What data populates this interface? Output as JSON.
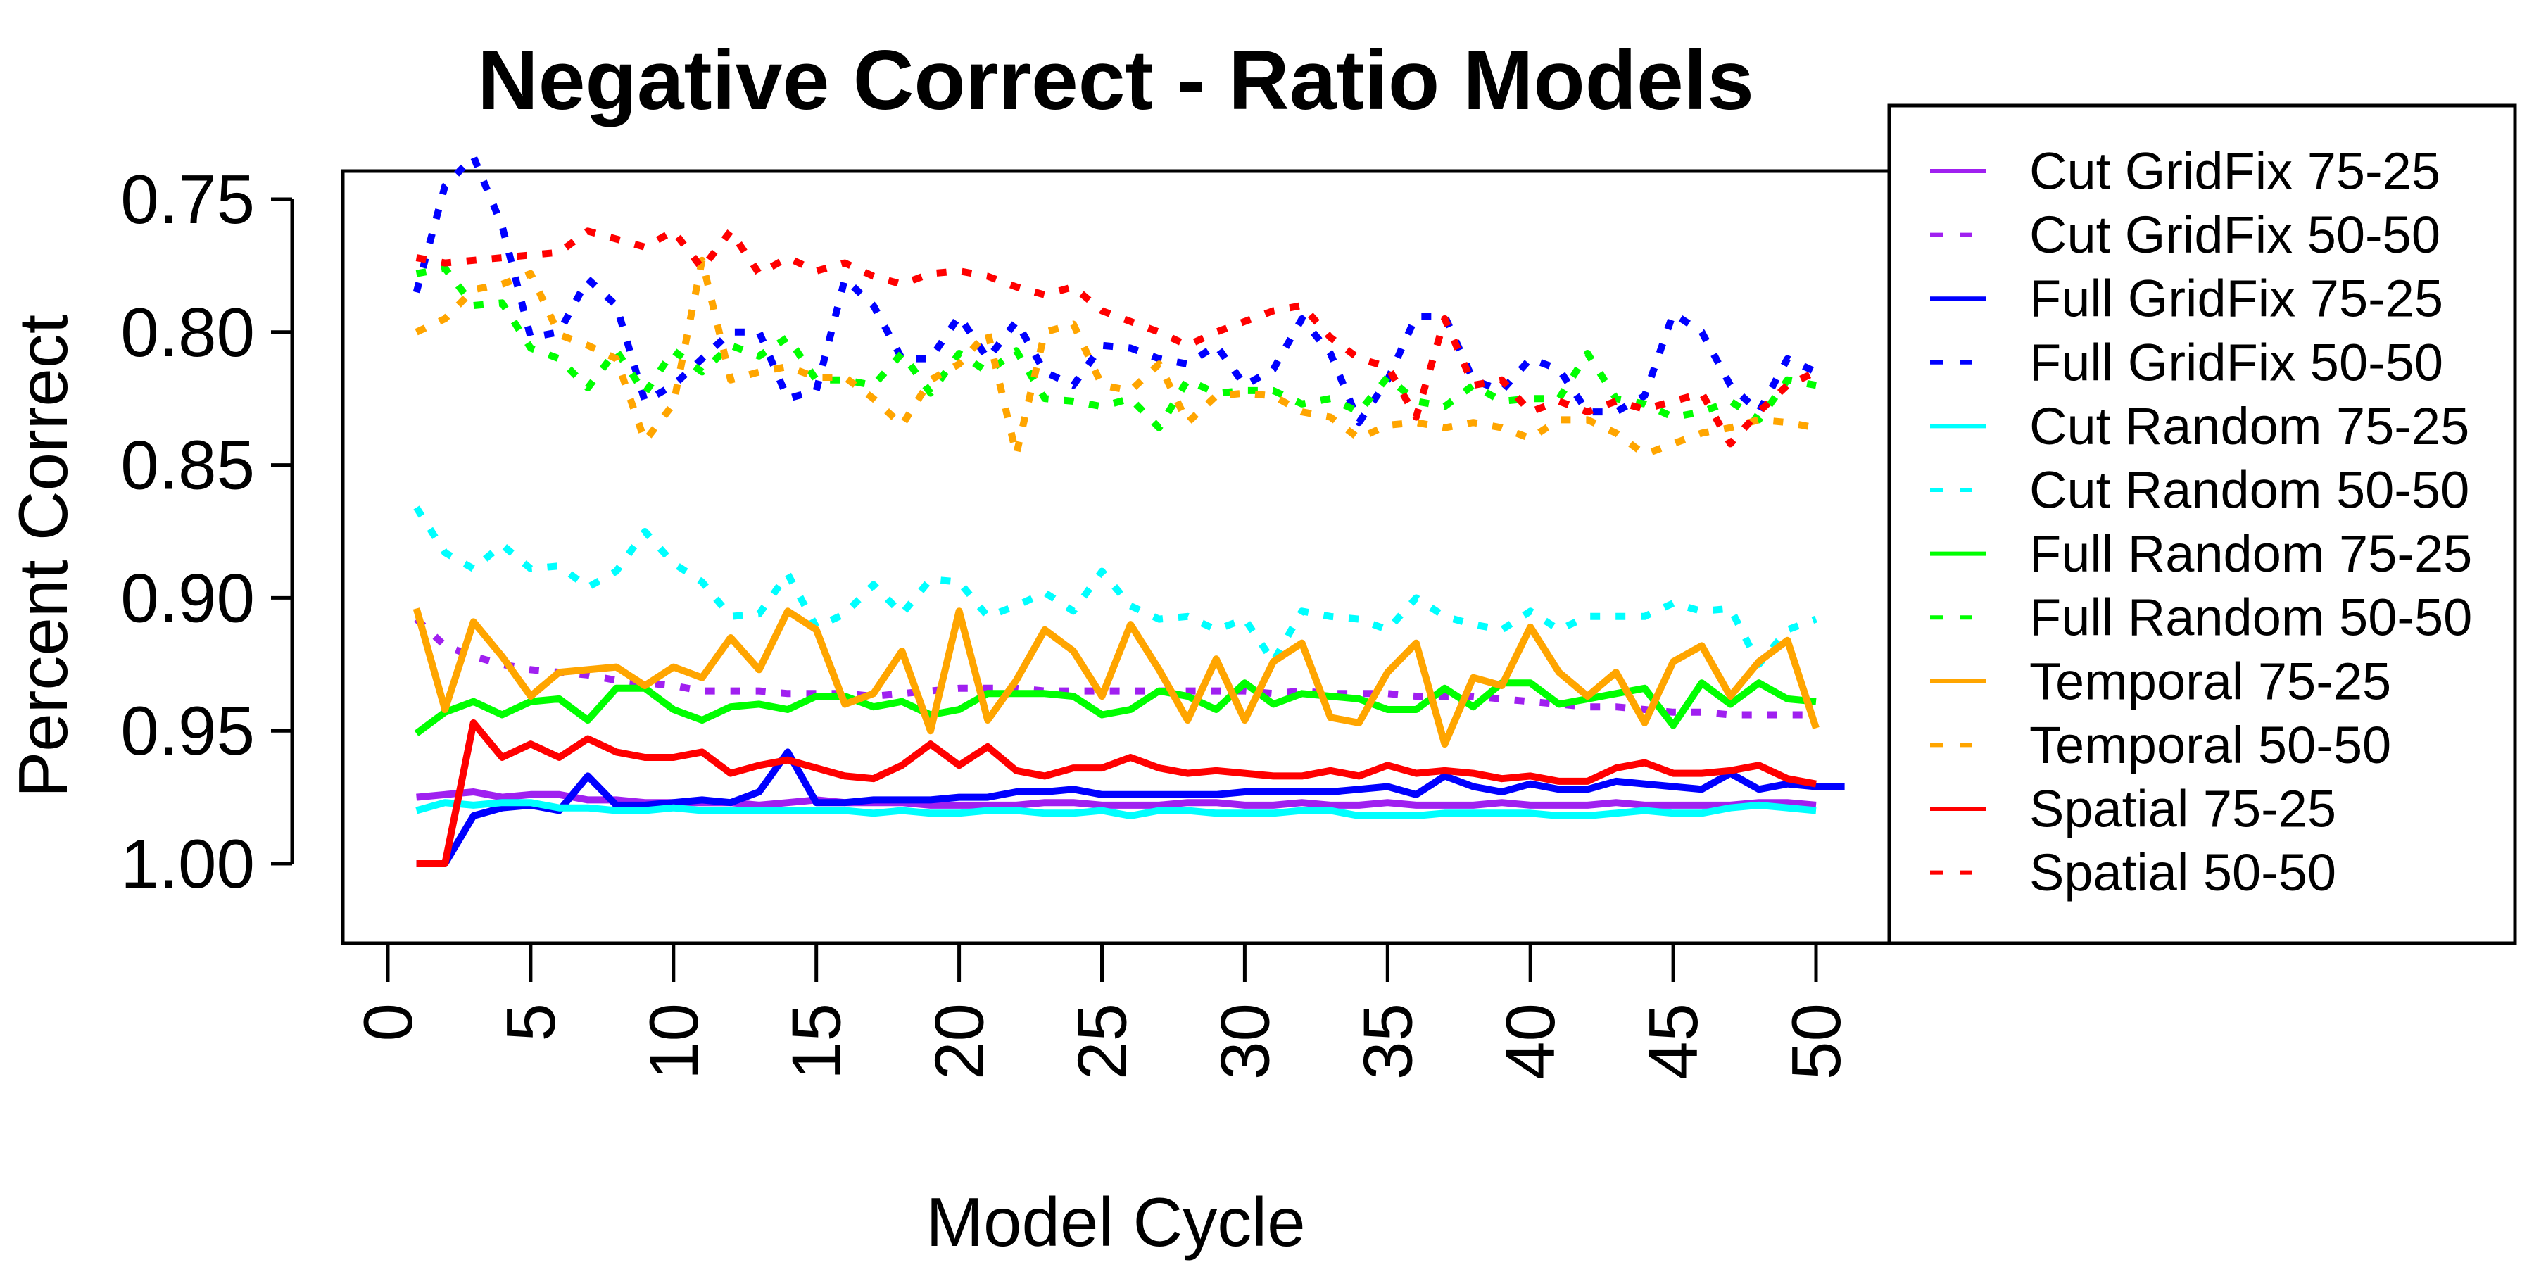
{
  "chart_data": {
    "type": "line",
    "title": "Negative Correct - Ratio Models",
    "xlabel": "Model Cycle",
    "ylabel": "Percent Correct",
    "xlim": [
      0,
      50
    ],
    "ylim": [
      0.73,
      1.01
    ],
    "xticks": [
      "0",
      "5",
      "10",
      "15",
      "20",
      "25",
      "30",
      "35",
      "40",
      "45",
      "50"
    ],
    "xtick_values": [
      0,
      5,
      10,
      15,
      20,
      25,
      30,
      35,
      40,
      45,
      50
    ],
    "yticks": [
      "1.00",
      "0.95",
      "0.90",
      "0.85",
      "0.80",
      "0.75"
    ],
    "ytick_values": [
      1.0,
      0.95,
      0.9,
      0.85,
      0.8,
      0.75
    ],
    "grid": false,
    "legend_position": "right",
    "series": [
      {
        "name": "Cut GridFix 75-25",
        "color": "#A020F0",
        "dash": "solid",
        "x_start": 1,
        "values": [
          0.975,
          0.974,
          0.973,
          0.975,
          0.974,
          0.974,
          0.976,
          0.976,
          0.977,
          0.977,
          0.977,
          0.977,
          0.978,
          0.977,
          0.976,
          0.977,
          0.977,
          0.977,
          0.978,
          0.978,
          0.978,
          0.978,
          0.977,
          0.977,
          0.978,
          0.978,
          0.978,
          0.977,
          0.977,
          0.978,
          0.978,
          0.977,
          0.978,
          0.978,
          0.977,
          0.978,
          0.978,
          0.978,
          0.977,
          0.978,
          0.978,
          0.978,
          0.977,
          0.978,
          0.978,
          0.978,
          0.978,
          0.977,
          0.977,
          0.978
        ]
      },
      {
        "name": "Cut GridFix 50-50",
        "color": "#A020F0",
        "dash": "dashed",
        "x_start": 1,
        "values": [
          0.908,
          0.918,
          0.922,
          0.925,
          0.927,
          0.928,
          0.929,
          0.931,
          0.932,
          0.933,
          0.935,
          0.935,
          0.935,
          0.936,
          0.936,
          0.936,
          0.937,
          0.936,
          0.935,
          0.934,
          0.934,
          0.934,
          0.935,
          0.935,
          0.935,
          0.935,
          0.935,
          0.935,
          0.935,
          0.935,
          0.936,
          0.935,
          0.936,
          0.936,
          0.936,
          0.937,
          0.937,
          0.937,
          0.938,
          0.939,
          0.94,
          0.941,
          0.941,
          0.942,
          0.943,
          0.943,
          0.944,
          0.944,
          0.944,
          0.944
        ]
      },
      {
        "name": "Full GridFix 75-25",
        "color": "#0000FF",
        "dash": "solid",
        "x_start": 1,
        "values": [
          1.0,
          1.0,
          0.982,
          0.979,
          0.978,
          0.98,
          0.967,
          0.978,
          0.978,
          0.977,
          0.976,
          0.977,
          0.973,
          0.958,
          0.977,
          0.977,
          0.976,
          0.976,
          0.976,
          0.975,
          0.975,
          0.973,
          0.973,
          0.972,
          0.974,
          0.974,
          0.974,
          0.974,
          0.974,
          0.973,
          0.973,
          0.973,
          0.973,
          0.972,
          0.971,
          0.974,
          0.967,
          0.971,
          0.973,
          0.97,
          0.972,
          0.972,
          0.969,
          0.97,
          0.971,
          0.972,
          0.966,
          0.972,
          0.97,
          0.971,
          0.971
        ]
      },
      {
        "name": "Full GridFix 50-50",
        "color": "#0000FF",
        "dash": "dashed",
        "x_start": 1,
        "values": [
          0.785,
          0.745,
          0.734,
          0.76,
          0.802,
          0.8,
          0.78,
          0.79,
          0.826,
          0.82,
          0.81,
          0.8,
          0.8,
          0.825,
          0.822,
          0.78,
          0.79,
          0.81,
          0.81,
          0.794,
          0.81,
          0.796,
          0.815,
          0.82,
          0.805,
          0.806,
          0.81,
          0.812,
          0.805,
          0.82,
          0.814,
          0.795,
          0.808,
          0.834,
          0.818,
          0.794,
          0.794,
          0.818,
          0.822,
          0.81,
          0.814,
          0.83,
          0.83,
          0.824,
          0.793,
          0.8,
          0.82,
          0.83,
          0.81,
          0.815
        ]
      },
      {
        "name": "Cut Random 75-25",
        "color": "#00FFFF",
        "dash": "solid",
        "x_start": 1,
        "values": [
          0.98,
          0.977,
          0.978,
          0.977,
          0.977,
          0.979,
          0.979,
          0.98,
          0.98,
          0.979,
          0.98,
          0.98,
          0.98,
          0.98,
          0.98,
          0.98,
          0.981,
          0.98,
          0.981,
          0.981,
          0.98,
          0.98,
          0.981,
          0.981,
          0.98,
          0.982,
          0.98,
          0.98,
          0.981,
          0.981,
          0.981,
          0.98,
          0.98,
          0.982,
          0.982,
          0.982,
          0.981,
          0.981,
          0.981,
          0.981,
          0.982,
          0.982,
          0.981,
          0.98,
          0.981,
          0.981,
          0.979,
          0.978,
          0.979,
          0.98
        ]
      },
      {
        "name": "Cut Random 50-50",
        "color": "#00FFFF",
        "dash": "dashed",
        "x_start": 1,
        "values": [
          0.866,
          0.883,
          0.889,
          0.88,
          0.889,
          0.888,
          0.896,
          0.89,
          0.875,
          0.887,
          0.894,
          0.907,
          0.906,
          0.891,
          0.911,
          0.906,
          0.895,
          0.906,
          0.893,
          0.894,
          0.907,
          0.903,
          0.898,
          0.905,
          0.89,
          0.903,
          0.908,
          0.907,
          0.912,
          0.908,
          0.924,
          0.905,
          0.907,
          0.908,
          0.912,
          0.9,
          0.907,
          0.91,
          0.912,
          0.905,
          0.912,
          0.907,
          0.907,
          0.907,
          0.902,
          0.905,
          0.904,
          0.925,
          0.912,
          0.908
        ]
      },
      {
        "name": "Full Random 75-25",
        "color": "#00FF00",
        "dash": "solid",
        "x_start": 1,
        "values": [
          0.951,
          0.943,
          0.939,
          0.944,
          0.939,
          0.938,
          0.946,
          0.934,
          0.934,
          0.942,
          0.946,
          0.941,
          0.94,
          0.942,
          0.937,
          0.937,
          0.941,
          0.939,
          0.944,
          0.942,
          0.936,
          0.936,
          0.936,
          0.937,
          0.944,
          0.942,
          0.935,
          0.937,
          0.942,
          0.932,
          0.94,
          0.936,
          0.937,
          0.938,
          0.942,
          0.942,
          0.934,
          0.941,
          0.932,
          0.932,
          0.94,
          0.938,
          0.936,
          0.934,
          0.948,
          0.932,
          0.94,
          0.932,
          0.938,
          0.939
        ]
      },
      {
        "name": "Full Random 50-50",
        "color": "#00FF00",
        "dash": "dashed",
        "x_start": 1,
        "values": [
          0.778,
          0.776,
          0.79,
          0.789,
          0.806,
          0.81,
          0.821,
          0.807,
          0.823,
          0.807,
          0.815,
          0.805,
          0.809,
          0.802,
          0.818,
          0.818,
          0.82,
          0.808,
          0.823,
          0.808,
          0.815,
          0.807,
          0.825,
          0.826,
          0.828,
          0.825,
          0.836,
          0.818,
          0.823,
          0.822,
          0.822,
          0.827,
          0.825,
          0.83,
          0.817,
          0.826,
          0.828,
          0.82,
          0.826,
          0.825,
          0.825,
          0.808,
          0.825,
          0.827,
          0.832,
          0.83,
          0.826,
          0.833,
          0.818,
          0.82
        ]
      },
      {
        "name": "Temporal 75-25",
        "color": "#FFA500",
        "dash": "solid",
        "x_start": 1,
        "values": [
          0.904,
          0.942,
          0.909,
          0.922,
          0.937,
          0.928,
          0.927,
          0.926,
          0.933,
          0.926,
          0.93,
          0.915,
          0.927,
          0.905,
          0.912,
          0.94,
          0.936,
          0.92,
          0.95,
          0.905,
          0.946,
          0.931,
          0.912,
          0.92,
          0.937,
          0.91,
          0.927,
          0.946,
          0.923,
          0.946,
          0.924,
          0.917,
          0.945,
          0.947,
          0.928,
          0.917,
          0.955,
          0.93,
          0.933,
          0.911,
          0.928,
          0.937,
          0.928,
          0.947,
          0.924,
          0.918,
          0.937,
          0.924,
          0.916,
          0.949
        ]
      },
      {
        "name": "Temporal 50-50",
        "color": "#FFA500",
        "dash": "dashed",
        "x_start": 1,
        "values": [
          0.8,
          0.795,
          0.784,
          0.782,
          0.778,
          0.801,
          0.805,
          0.81,
          0.841,
          0.827,
          0.773,
          0.818,
          0.815,
          0.813,
          0.817,
          0.817,
          0.825,
          0.835,
          0.818,
          0.812,
          0.8,
          0.846,
          0.8,
          0.797,
          0.82,
          0.822,
          0.812,
          0.834,
          0.824,
          0.823,
          0.824,
          0.83,
          0.832,
          0.84,
          0.835,
          0.834,
          0.836,
          0.834,
          0.836,
          0.84,
          0.833,
          0.833,
          0.838,
          0.846,
          0.842,
          0.838,
          0.836,
          0.833,
          0.834,
          0.836
        ]
      },
      {
        "name": "Spatial 75-25",
        "color": "#FF0000",
        "dash": "solid",
        "x_start": 1,
        "values": [
          1.0,
          1.0,
          0.947,
          0.96,
          0.955,
          0.96,
          0.953,
          0.958,
          0.96,
          0.96,
          0.958,
          0.966,
          0.963,
          0.961,
          0.964,
          0.967,
          0.968,
          0.963,
          0.955,
          0.963,
          0.956,
          0.965,
          0.967,
          0.964,
          0.964,
          0.96,
          0.964,
          0.966,
          0.965,
          0.966,
          0.967,
          0.967,
          0.965,
          0.967,
          0.963,
          0.966,
          0.965,
          0.966,
          0.968,
          0.967,
          0.969,
          0.969,
          0.964,
          0.962,
          0.966,
          0.966,
          0.965,
          0.963,
          0.968,
          0.97
        ]
      },
      {
        "name": "Spatial 50-50",
        "color": "#FF0000",
        "dash": "dashed",
        "x_start": 1,
        "values": [
          0.772,
          0.774,
          0.773,
          0.772,
          0.771,
          0.77,
          0.762,
          0.765,
          0.768,
          0.762,
          0.776,
          0.762,
          0.778,
          0.772,
          0.777,
          0.774,
          0.779,
          0.782,
          0.778,
          0.777,
          0.779,
          0.783,
          0.786,
          0.783,
          0.792,
          0.796,
          0.8,
          0.805,
          0.8,
          0.796,
          0.792,
          0.79,
          0.802,
          0.81,
          0.813,
          0.832,
          0.795,
          0.82,
          0.818,
          0.83,
          0.826,
          0.83,
          0.826,
          0.829,
          0.826,
          0.823,
          0.842,
          0.83,
          0.82,
          0.815
        ]
      }
    ]
  }
}
